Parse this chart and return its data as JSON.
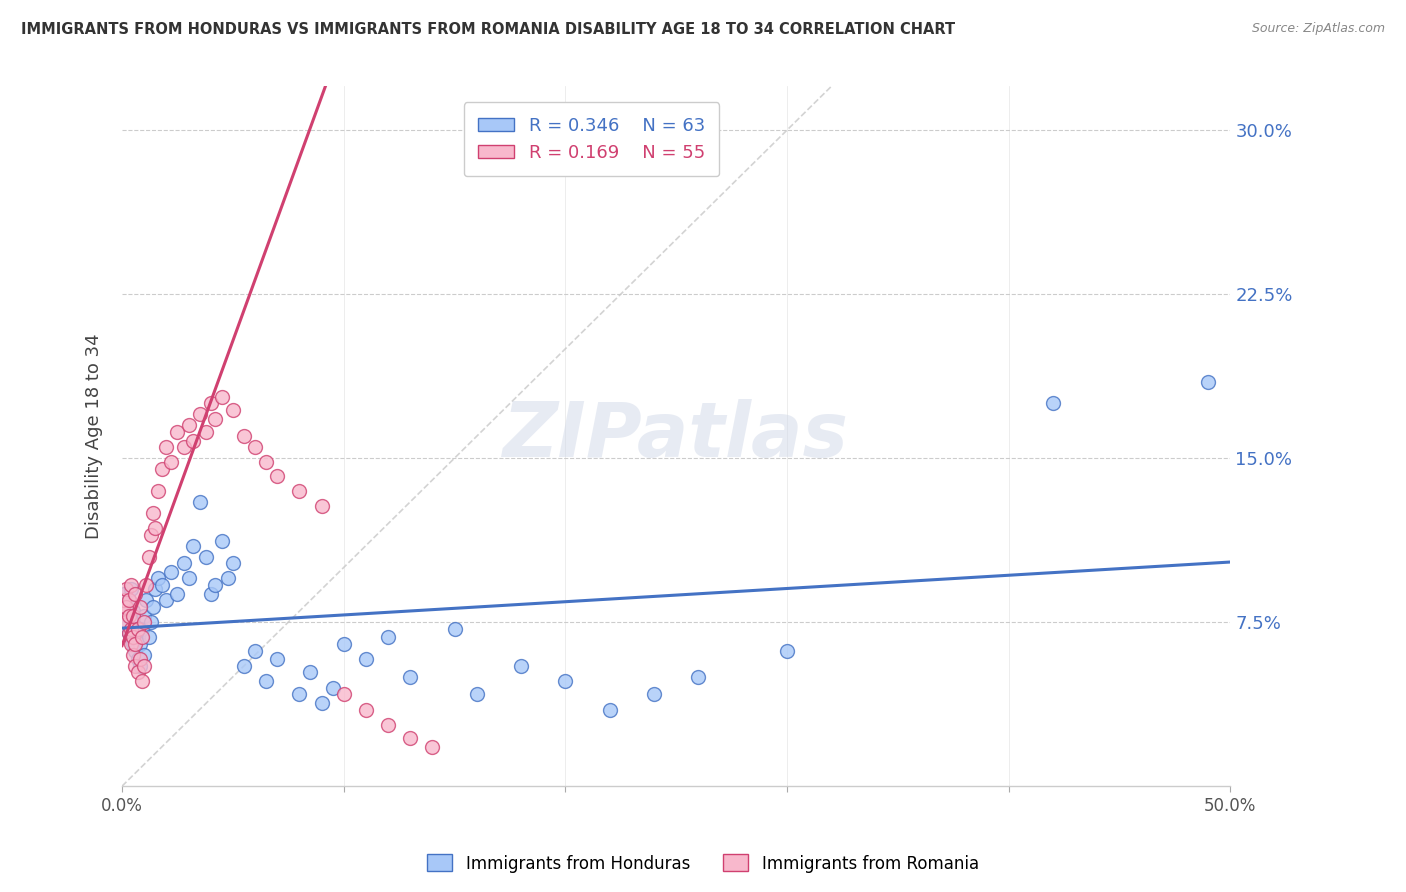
{
  "title": "IMMIGRANTS FROM HONDURAS VS IMMIGRANTS FROM ROMANIA DISABILITY AGE 18 TO 34 CORRELATION CHART",
  "source": "Source: ZipAtlas.com",
  "ylabel": "Disability Age 18 to 34",
  "ytick_labels": [
    "7.5%",
    "15.0%",
    "22.5%",
    "30.0%"
  ],
  "ytick_values": [
    0.075,
    0.15,
    0.225,
    0.3
  ],
  "xlim": [
    0.0,
    0.5
  ],
  "ylim": [
    0.0,
    0.32
  ],
  "legend_r_honduras": "0.346",
  "legend_n_honduras": "63",
  "legend_r_romania": "0.169",
  "legend_n_romania": "55",
  "color_honduras": "#a8c8f8",
  "color_romania": "#f8b8cc",
  "color_trendline_honduras": "#4472c4",
  "color_trendline_romania": "#d04070",
  "color_diagonal": "#c8c8c8",
  "watermark": "ZIPatlas",
  "honduras_x": [
    0.001,
    0.002,
    0.002,
    0.003,
    0.003,
    0.003,
    0.004,
    0.004,
    0.004,
    0.005,
    0.005,
    0.005,
    0.006,
    0.006,
    0.007,
    0.007,
    0.008,
    0.008,
    0.009,
    0.01,
    0.01,
    0.011,
    0.012,
    0.013,
    0.014,
    0.015,
    0.016,
    0.018,
    0.02,
    0.022,
    0.025,
    0.028,
    0.03,
    0.032,
    0.035,
    0.038,
    0.04,
    0.042,
    0.045,
    0.048,
    0.05,
    0.055,
    0.06,
    0.065,
    0.07,
    0.08,
    0.085,
    0.09,
    0.095,
    0.1,
    0.11,
    0.12,
    0.13,
    0.15,
    0.16,
    0.18,
    0.2,
    0.22,
    0.24,
    0.26,
    0.3,
    0.42,
    0.49
  ],
  "honduras_y": [
    0.088,
    0.075,
    0.082,
    0.07,
    0.078,
    0.085,
    0.072,
    0.068,
    0.09,
    0.065,
    0.08,
    0.075,
    0.062,
    0.072,
    0.058,
    0.068,
    0.055,
    0.065,
    0.072,
    0.06,
    0.078,
    0.085,
    0.068,
    0.075,
    0.082,
    0.09,
    0.095,
    0.092,
    0.085,
    0.098,
    0.088,
    0.102,
    0.095,
    0.11,
    0.13,
    0.105,
    0.088,
    0.092,
    0.112,
    0.095,
    0.102,
    0.055,
    0.062,
    0.048,
    0.058,
    0.042,
    0.052,
    0.038,
    0.045,
    0.065,
    0.058,
    0.068,
    0.05,
    0.072,
    0.042,
    0.055,
    0.048,
    0.035,
    0.042,
    0.05,
    0.062,
    0.175,
    0.185
  ],
  "romania_x": [
    0.001,
    0.001,
    0.002,
    0.002,
    0.002,
    0.003,
    0.003,
    0.003,
    0.004,
    0.004,
    0.004,
    0.005,
    0.005,
    0.005,
    0.006,
    0.006,
    0.006,
    0.007,
    0.007,
    0.008,
    0.008,
    0.009,
    0.009,
    0.01,
    0.01,
    0.011,
    0.012,
    0.013,
    0.014,
    0.015,
    0.016,
    0.018,
    0.02,
    0.022,
    0.025,
    0.028,
    0.03,
    0.032,
    0.035,
    0.038,
    0.04,
    0.042,
    0.045,
    0.05,
    0.055,
    0.06,
    0.065,
    0.07,
    0.08,
    0.09,
    0.1,
    0.11,
    0.12,
    0.13,
    0.14
  ],
  "romania_y": [
    0.08,
    0.085,
    0.075,
    0.082,
    0.09,
    0.07,
    0.078,
    0.085,
    0.065,
    0.072,
    0.092,
    0.06,
    0.068,
    0.078,
    0.055,
    0.065,
    0.088,
    0.052,
    0.072,
    0.058,
    0.082,
    0.048,
    0.068,
    0.055,
    0.075,
    0.092,
    0.105,
    0.115,
    0.125,
    0.118,
    0.135,
    0.145,
    0.155,
    0.148,
    0.162,
    0.155,
    0.165,
    0.158,
    0.17,
    0.162,
    0.175,
    0.168,
    0.178,
    0.172,
    0.16,
    0.155,
    0.148,
    0.142,
    0.135,
    0.128,
    0.042,
    0.035,
    0.028,
    0.022,
    0.018
  ]
}
